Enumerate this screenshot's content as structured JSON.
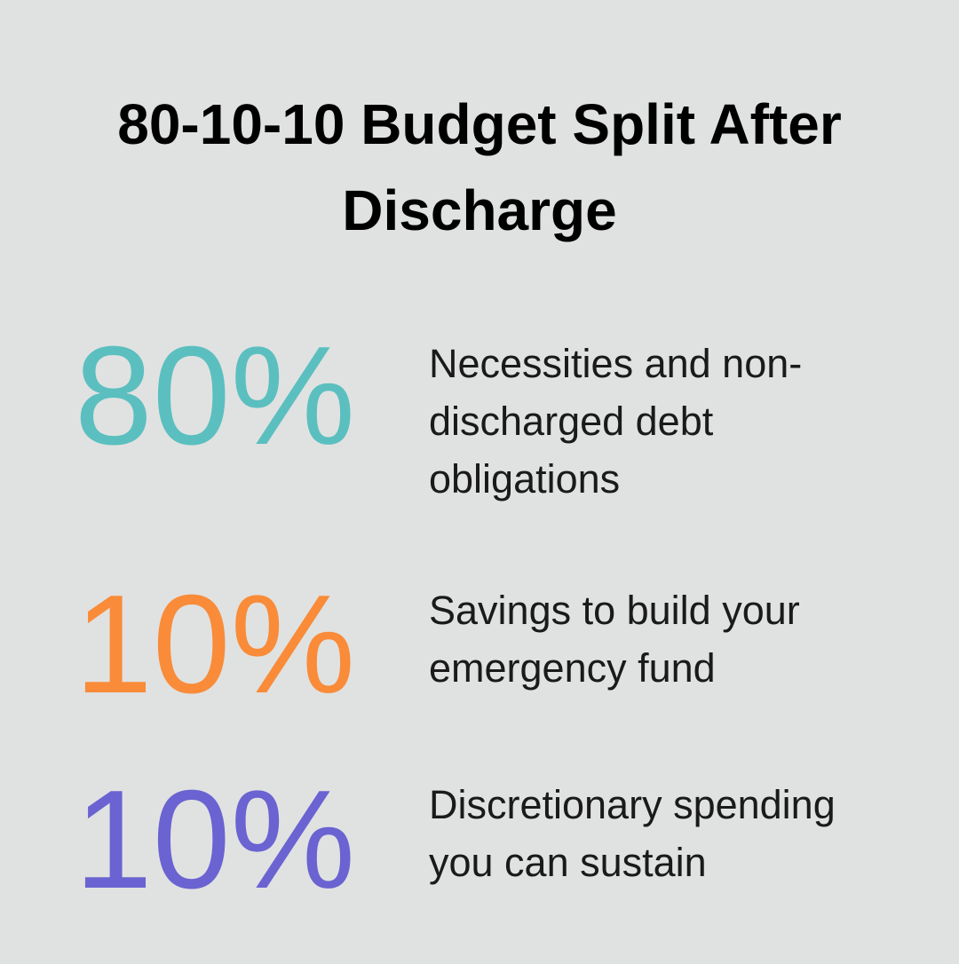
{
  "header": {
    "title_lines": [
      "80-10-10 Budget Split After",
      "Discharge"
    ]
  },
  "items": [
    {
      "figure": "80%",
      "color": "#5bbfc0",
      "description_lines": [
        "Necessities and non-",
        "discharged debt",
        "obligations"
      ]
    },
    {
      "figure": "10%",
      "color": "#f98b39",
      "description_lines": [
        "Savings to build your",
        "emergency fund"
      ]
    },
    {
      "figure": "10%",
      "color": "#6a63d1",
      "description_lines": [
        "Discretionary spending",
        "you can sustain"
      ]
    }
  ]
}
